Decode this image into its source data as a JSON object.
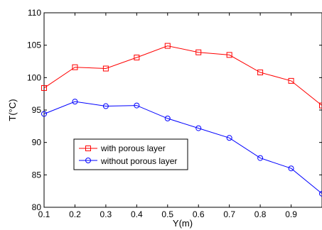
{
  "chart_data": {
    "type": "line",
    "title": "",
    "xlabel": "Y(m)",
    "ylabel": "T(°C)",
    "xlim": [
      0.1,
      1.0
    ],
    "ylim": [
      80,
      110
    ],
    "xticks": [
      "0.1",
      "0.2",
      "0.3",
      "0.4",
      "0.5",
      "0.6",
      "0.7",
      "0.8",
      "0.9"
    ],
    "yticks": [
      "80",
      "85",
      "90",
      "95",
      "100",
      "105",
      "110"
    ],
    "grid": false,
    "legend_position": "lower-left",
    "series": [
      {
        "name": "with porous layer",
        "color": "#ff0000",
        "marker": "square",
        "x": [
          0.1,
          0.2,
          0.3,
          0.4,
          0.5,
          0.6,
          0.7,
          0.8,
          0.9,
          1.0
        ],
        "values": [
          98.4,
          101.6,
          101.4,
          103.1,
          104.9,
          103.9,
          103.5,
          100.8,
          99.5,
          95.7
        ]
      },
      {
        "name": "without porous layer",
        "color": "#0000ff",
        "marker": "circle",
        "x": [
          0.1,
          0.2,
          0.3,
          0.4,
          0.5,
          0.6,
          0.7,
          0.8,
          0.9,
          1.0
        ],
        "values": [
          94.4,
          96.3,
          95.6,
          95.7,
          93.7,
          92.2,
          90.7,
          87.6,
          86.0,
          82.1
        ]
      }
    ]
  }
}
